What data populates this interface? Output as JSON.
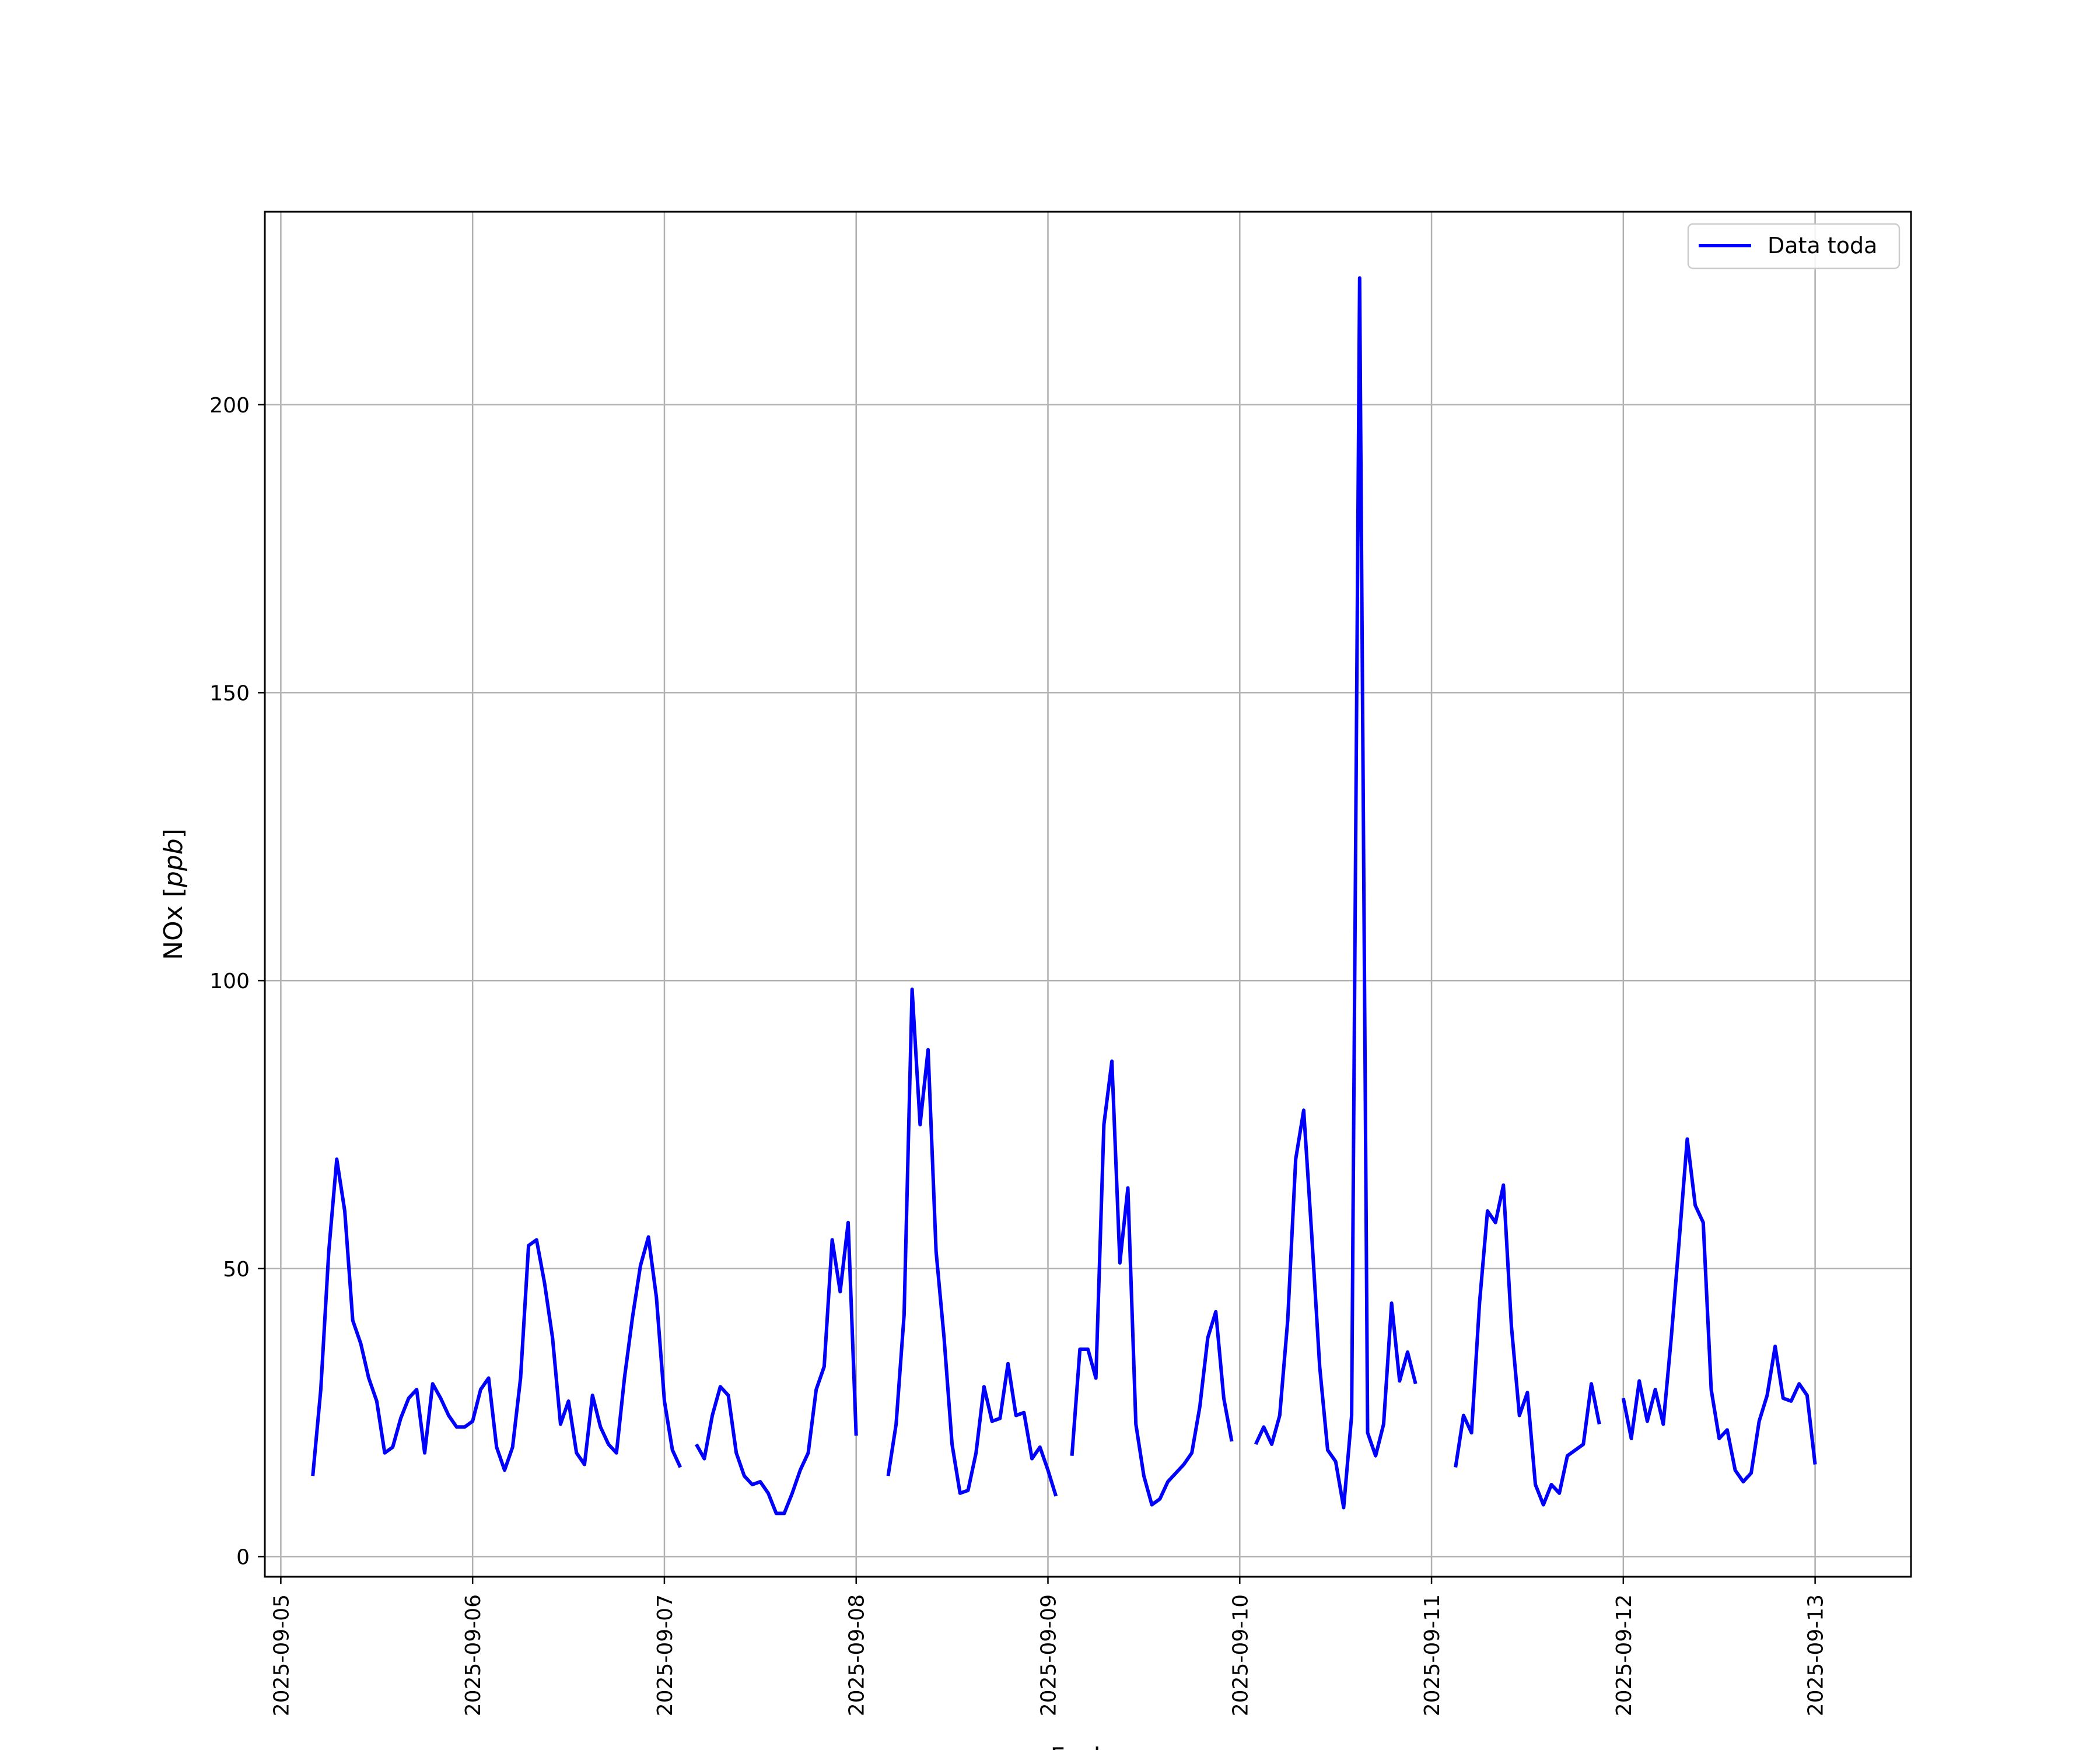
{
  "chart_data": {
    "type": "line",
    "xlabel": "Fecha",
    "ylabel_text": "NOx [",
    "ylabel_unit": "ppb",
    "ylabel_close": "]",
    "xlim": [
      "2025-09-04T22:00",
      "2025-09-13T12:00"
    ],
    "ylim": [
      -3.5,
      233.5
    ],
    "grid": true,
    "legend_placement": "top-right",
    "x_ticks": [
      "2025-09-05",
      "2025-09-06",
      "2025-09-07",
      "2025-09-08",
      "2025-09-09",
      "2025-09-10",
      "2025-09-11",
      "2025-09-12",
      "2025-09-13"
    ],
    "y_ticks": [
      0,
      50,
      100,
      150,
      200
    ],
    "y_tick_labels": [
      "0",
      "50",
      "100",
      "150",
      "200"
    ],
    "series": [
      {
        "name": "Data toda",
        "color": "#0000ff",
        "segments": [
          [
            [
              "2025-09-05T04:00",
              14
            ],
            [
              "2025-09-05T05:00",
              29
            ],
            [
              "2025-09-05T06:00",
              53
            ],
            [
              "2025-09-05T07:00",
              69
            ],
            [
              "2025-09-05T08:00",
              60
            ],
            [
              "2025-09-05T09:00",
              41
            ],
            [
              "2025-09-05T10:00",
              37
            ],
            [
              "2025-09-05T11:00",
              31
            ],
            [
              "2025-09-05T12:00",
              27
            ],
            [
              "2025-09-05T13:00",
              18
            ],
            [
              "2025-09-05T14:00",
              19
            ],
            [
              "2025-09-05T15:00",
              24
            ],
            [
              "2025-09-05T16:00",
              27.5
            ],
            [
              "2025-09-05T17:00",
              29
            ],
            [
              "2025-09-05T18:00",
              18
            ],
            [
              "2025-09-05T19:00",
              30
            ],
            [
              "2025-09-05T20:00",
              27.5
            ],
            [
              "2025-09-05T21:00",
              24.5
            ],
            [
              "2025-09-05T22:00",
              22.5
            ],
            [
              "2025-09-05T23:00",
              22.5
            ],
            [
              "2025-09-06T00:00",
              23.5
            ],
            [
              "2025-09-06T01:00",
              29
            ],
            [
              "2025-09-06T02:00",
              31
            ],
            [
              "2025-09-06T03:00",
              19
            ],
            [
              "2025-09-06T04:00",
              15
            ],
            [
              "2025-09-06T05:00",
              19
            ],
            [
              "2025-09-06T06:00",
              31
            ],
            [
              "2025-09-06T07:00",
              54
            ],
            [
              "2025-09-06T08:00",
              55
            ],
            [
              "2025-09-06T09:00",
              47.5
            ],
            [
              "2025-09-06T10:00",
              38
            ],
            [
              "2025-09-06T11:00",
              23
            ],
            [
              "2025-09-06T12:00",
              27
            ],
            [
              "2025-09-06T13:00",
              18
            ],
            [
              "2025-09-06T14:00",
              16
            ],
            [
              "2025-09-06T15:00",
              28
            ],
            [
              "2025-09-06T16:00",
              22.5
            ],
            [
              "2025-09-06T17:00",
              19.5
            ],
            [
              "2025-09-06T18:00",
              18
            ],
            [
              "2025-09-06T19:00",
              31
            ],
            [
              "2025-09-06T20:00",
              41.5
            ],
            [
              "2025-09-06T21:00",
              50.5
            ],
            [
              "2025-09-06T22:00",
              55.5
            ],
            [
              "2025-09-06T23:00",
              45
            ],
            [
              "2025-09-07T00:00",
              27
            ],
            [
              "2025-09-07T01:00",
              18.5
            ],
            [
              "2025-09-07T02:00",
              15.5
            ]
          ],
          [
            [
              "2025-09-07T04:00",
              19.5
            ],
            [
              "2025-09-07T05:00",
              17
            ],
            [
              "2025-09-07T06:00",
              24.5
            ],
            [
              "2025-09-07T07:00",
              29.5
            ],
            [
              "2025-09-07T08:00",
              28
            ],
            [
              "2025-09-07T09:00",
              18
            ],
            [
              "2025-09-07T10:00",
              14
            ],
            [
              "2025-09-07T11:00",
              12.5
            ],
            [
              "2025-09-07T12:00",
              13
            ],
            [
              "2025-09-07T13:00",
              11
            ],
            [
              "2025-09-07T14:00",
              7.5
            ],
            [
              "2025-09-07T15:00",
              7.5
            ],
            [
              "2025-09-07T16:00",
              11
            ],
            [
              "2025-09-07T17:00",
              15
            ],
            [
              "2025-09-07T18:00",
              18
            ],
            [
              "2025-09-07T19:00",
              29
            ],
            [
              "2025-09-07T20:00",
              33
            ],
            [
              "2025-09-07T21:00",
              55
            ],
            [
              "2025-09-07T22:00",
              46
            ],
            [
              "2025-09-07T23:00",
              58
            ],
            [
              "2025-09-08T00:00",
              21
            ]
          ],
          [
            [
              "2025-09-08T04:00",
              14
            ],
            [
              "2025-09-08T05:00",
              23
            ],
            [
              "2025-09-08T06:00",
              42
            ],
            [
              "2025-09-08T07:00",
              98.5
            ],
            [
              "2025-09-08T08:00",
              75
            ],
            [
              "2025-09-08T09:00",
              88
            ],
            [
              "2025-09-08T10:00",
              53
            ],
            [
              "2025-09-08T11:00",
              38
            ],
            [
              "2025-09-08T12:00",
              19.5
            ],
            [
              "2025-09-08T13:00",
              11
            ],
            [
              "2025-09-08T14:00",
              11.5
            ],
            [
              "2025-09-08T15:00",
              18
            ],
            [
              "2025-09-08T16:00",
              29.5
            ],
            [
              "2025-09-08T17:00",
              23.5
            ],
            [
              "2025-09-08T18:00",
              24
            ],
            [
              "2025-09-08T19:00",
              33.5
            ],
            [
              "2025-09-08T20:00",
              24.5
            ],
            [
              "2025-09-08T21:00",
              25
            ],
            [
              "2025-09-08T22:00",
              17
            ],
            [
              "2025-09-08T23:00",
              19
            ],
            [
              "2025-09-09T00:00",
              15
            ],
            [
              "2025-09-09T01:00",
              10.5
            ]
          ],
          [
            [
              "2025-09-09T03:00",
              17.5
            ],
            [
              "2025-09-09T04:00",
              36
            ],
            [
              "2025-09-09T05:00",
              36
            ],
            [
              "2025-09-09T06:00",
              31
            ],
            [
              "2025-09-09T07:00",
              75
            ],
            [
              "2025-09-09T08:00",
              86
            ],
            [
              "2025-09-09T09:00",
              51
            ],
            [
              "2025-09-09T10:00",
              64
            ],
            [
              "2025-09-09T11:00",
              23
            ],
            [
              "2025-09-09T12:00",
              14
            ],
            [
              "2025-09-09T13:00",
              9
            ],
            [
              "2025-09-09T14:00",
              10
            ],
            [
              "2025-09-09T15:00",
              13
            ],
            [
              "2025-09-09T16:00",
              14.5
            ],
            [
              "2025-09-09T17:00",
              16
            ],
            [
              "2025-09-09T18:00",
              18
            ],
            [
              "2025-09-09T19:00",
              26
            ],
            [
              "2025-09-09T20:00",
              38
            ],
            [
              "2025-09-09T21:00",
              42.5
            ],
            [
              "2025-09-09T22:00",
              27.5
            ],
            [
              "2025-09-09T23:00",
              20
            ]
          ],
          [
            [
              "2025-09-10T02:00",
              19.5
            ],
            [
              "2025-09-10T03:00",
              22.5
            ],
            [
              "2025-09-10T04:00",
              19.5
            ],
            [
              "2025-09-10T05:00",
              24.5
            ],
            [
              "2025-09-10T06:00",
              41
            ],
            [
              "2025-09-10T07:00",
              69
            ],
            [
              "2025-09-10T08:00",
              77.5
            ],
            [
              "2025-09-10T09:00",
              56
            ],
            [
              "2025-09-10T10:00",
              33
            ],
            [
              "2025-09-10T11:00",
              18.5
            ],
            [
              "2025-09-10T12:00",
              16.5
            ],
            [
              "2025-09-10T13:00",
              8.5
            ],
            [
              "2025-09-10T14:00",
              24.5
            ],
            [
              "2025-09-10T15:00",
              222
            ],
            [
              "2025-09-10T16:00",
              21.5
            ],
            [
              "2025-09-10T17:00",
              17.5
            ],
            [
              "2025-09-10T18:00",
              23
            ],
            [
              "2025-09-10T19:00",
              44
            ],
            [
              "2025-09-10T20:00",
              30.5
            ],
            [
              "2025-09-10T21:00",
              35.5
            ],
            [
              "2025-09-10T22:00",
              30
            ]
          ],
          [
            [
              "2025-09-11T03:00",
              15.5
            ],
            [
              "2025-09-11T04:00",
              24.5
            ],
            [
              "2025-09-11T05:00",
              21.5
            ],
            [
              "2025-09-11T06:00",
              44
            ],
            [
              "2025-09-11T07:00",
              60
            ],
            [
              "2025-09-11T08:00",
              58
            ],
            [
              "2025-09-11T09:00",
              64.5
            ],
            [
              "2025-09-11T10:00",
              40
            ],
            [
              "2025-09-11T11:00",
              24.5
            ],
            [
              "2025-09-11T12:00",
              28.5
            ],
            [
              "2025-09-11T13:00",
              12.5
            ],
            [
              "2025-09-11T14:00",
              9
            ],
            [
              "2025-09-11T15:00",
              12.5
            ],
            [
              "2025-09-11T16:00",
              11
            ],
            [
              "2025-09-11T17:00",
              17.5
            ],
            [
              "2025-09-11T18:00",
              18.5
            ],
            [
              "2025-09-11T19:00",
              19.5
            ],
            [
              "2025-09-11T20:00",
              30
            ],
            [
              "2025-09-11T21:00",
              23
            ]
          ],
          [
            [
              "2025-09-12T00:00",
              27.5
            ],
            [
              "2025-09-12T01:00",
              20.5
            ],
            [
              "2025-09-12T02:00",
              30.5
            ],
            [
              "2025-09-12T03:00",
              23.5
            ],
            [
              "2025-09-12T04:00",
              29
            ],
            [
              "2025-09-12T05:00",
              23
            ],
            [
              "2025-09-12T06:00",
              38
            ],
            [
              "2025-09-12T07:00",
              55
            ],
            [
              "2025-09-12T08:00",
              72.5
            ],
            [
              "2025-09-12T09:00",
              61
            ],
            [
              "2025-09-12T10:00",
              58
            ],
            [
              "2025-09-12T11:00",
              29
            ],
            [
              "2025-09-12T12:00",
              20.5
            ],
            [
              "2025-09-12T13:00",
              22
            ],
            [
              "2025-09-12T14:00",
              15
            ],
            [
              "2025-09-12T15:00",
              13
            ],
            [
              "2025-09-12T16:00",
              14.5
            ],
            [
              "2025-09-12T17:00",
              23.5
            ],
            [
              "2025-09-12T18:00",
              28
            ],
            [
              "2025-09-12T19:00",
              36.5
            ],
            [
              "2025-09-12T20:00",
              27.5
            ],
            [
              "2025-09-12T21:00",
              27
            ],
            [
              "2025-09-12T22:00",
              30
            ],
            [
              "2025-09-12T23:00",
              28
            ],
            [
              "2025-09-13T00:00",
              16
            ]
          ]
        ]
      }
    ]
  }
}
